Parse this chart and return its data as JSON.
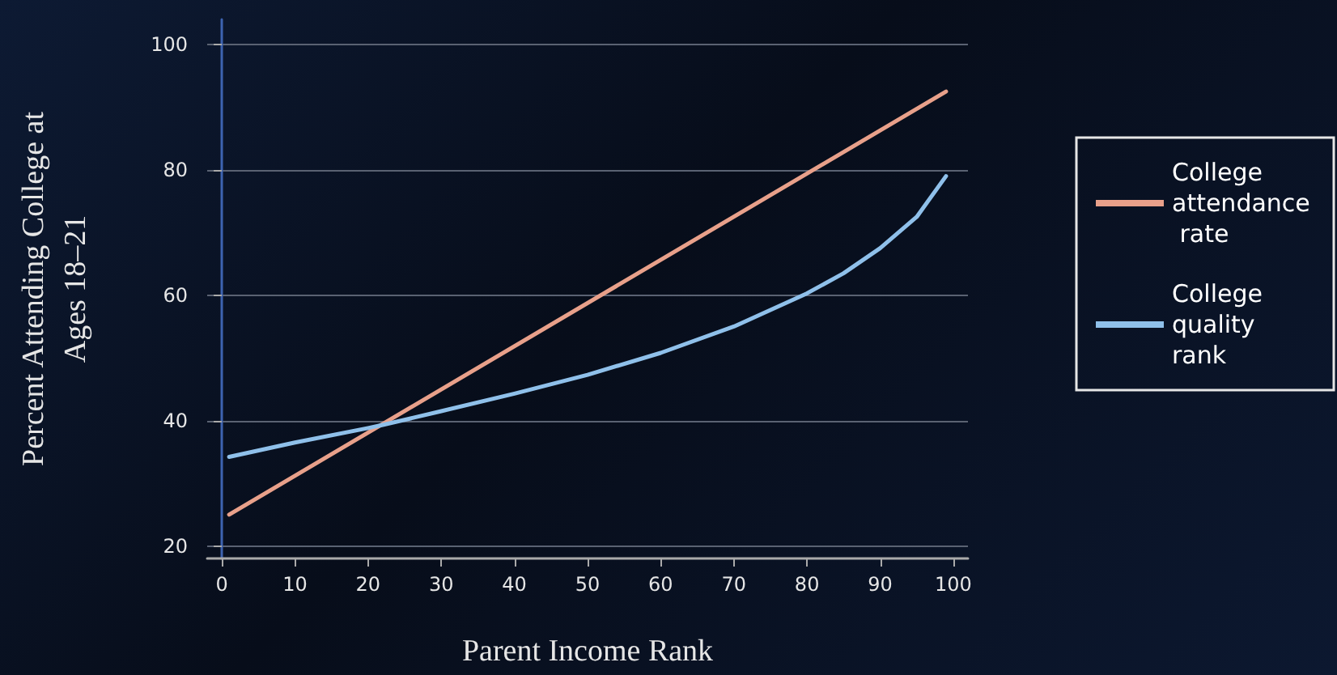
{
  "chart_data": {
    "type": "line",
    "xlabel": "Parent Income Rank",
    "ylabel": "Percent Attending College at\nAges 18–21",
    "series": [
      {
        "name": "College attendance rate",
        "color": "#e8a08a",
        "x": [
          1,
          99
        ],
        "values": [
          25,
          92.5
        ]
      },
      {
        "name": "College quality rank",
        "color": "#8fc0ea",
        "x": [
          1,
          10,
          20,
          22,
          30,
          40,
          50,
          60,
          70,
          80,
          85,
          90,
          95,
          99
        ],
        "values": [
          34.2,
          36.5,
          38.8,
          39.3,
          41.5,
          44.3,
          47.3,
          50.8,
          55,
          60.3,
          63.5,
          67.5,
          72.5,
          79
        ]
      }
    ],
    "xlim": [
      -2,
      102
    ],
    "xticks": [
      0,
      10,
      20,
      30,
      40,
      50,
      60,
      70,
      80,
      90,
      100
    ],
    "ylim": [
      18,
      104
    ],
    "yticks": [
      20,
      40,
      60,
      80,
      100
    ],
    "grid": "y",
    "legend": "right",
    "marker": "none",
    "line_style": "solid"
  }
}
